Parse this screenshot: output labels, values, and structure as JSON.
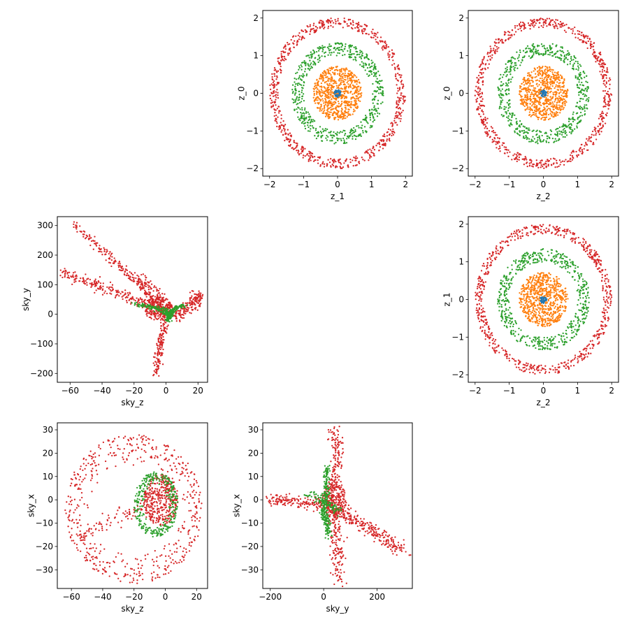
{
  "colors": {
    "blue": "#1f77b4",
    "orange": "#ff7f0e",
    "green": "#2ca02c",
    "red": "#d62728"
  },
  "chart_data": [
    {
      "type": "scatter",
      "panel": "row1-col2",
      "xlabel": "z_1",
      "ylabel": "z_0",
      "xlim": [
        -2.2,
        2.2
      ],
      "ylim": [
        -2.2,
        2.2
      ],
      "xticks": [
        -2,
        -1,
        0,
        1,
        2
      ],
      "yticks": [
        -2,
        -1,
        0,
        1,
        2
      ],
      "grid": false,
      "series": [
        {
          "color": "red",
          "kind": "ring",
          "r": [
            1.75,
            2.0
          ],
          "count": 700
        },
        {
          "color": "green",
          "kind": "ring",
          "r": [
            1.0,
            1.35
          ],
          "count": 600
        },
        {
          "color": "orange",
          "kind": "ring",
          "r": [
            0.0,
            0.72
          ],
          "count": 700
        },
        {
          "color": "blue",
          "kind": "ring",
          "r": [
            0.0,
            0.1
          ],
          "count": 40
        }
      ]
    },
    {
      "type": "scatter",
      "panel": "row1-col3",
      "xlabel": "z_2",
      "ylabel": "z_0",
      "xlim": [
        -2.2,
        2.2
      ],
      "ylim": [
        -2.2,
        2.2
      ],
      "xticks": [
        -2,
        -1,
        0,
        1,
        2
      ],
      "yticks": [
        -2,
        -1,
        0,
        1,
        2
      ],
      "grid": false,
      "series": [
        {
          "color": "red",
          "kind": "ring",
          "r": [
            1.75,
            2.0
          ],
          "count": 700
        },
        {
          "color": "green",
          "kind": "ring",
          "r": [
            1.0,
            1.35
          ],
          "count": 600
        },
        {
          "color": "orange",
          "kind": "ring",
          "r": [
            0.0,
            0.72
          ],
          "count": 700
        },
        {
          "color": "blue",
          "kind": "ring",
          "r": [
            0.0,
            0.1
          ],
          "count": 40
        }
      ]
    },
    {
      "type": "scatter",
      "panel": "row2-col1",
      "xlabel": "sky_z",
      "ylabel": "sky_y",
      "xlim": [
        -68,
        26
      ],
      "ylim": [
        -230,
        330
      ],
      "xticks": [
        -60,
        -40,
        -20,
        0,
        20
      ],
      "yticks": [
        -200,
        -100,
        0,
        100,
        200,
        300
      ],
      "grid": false,
      "series": [
        {
          "color": "red",
          "kind": "path",
          "spread": [
            1.2,
            8
          ],
          "points": [
            [
              -58,
              300
            ],
            [
              -45,
              240
            ],
            [
              -30,
              170
            ],
            [
              -15,
              90
            ],
            [
              -5,
              30
            ],
            [
              0,
              5
            ],
            [
              -2,
              -50
            ],
            [
              -4,
              -120
            ],
            [
              -6,
              -200
            ]
          ],
          "count": 380
        },
        {
          "color": "red",
          "kind": "path",
          "spread": [
            1.5,
            10
          ],
          "points": [
            [
              -65,
              145
            ],
            [
              -50,
              110
            ],
            [
              -35,
              80
            ],
            [
              -20,
              50
            ],
            [
              -8,
              25
            ],
            [
              5,
              10
            ],
            [
              15,
              30
            ],
            [
              22,
              60
            ]
          ],
          "count": 320
        },
        {
          "color": "red",
          "kind": "path",
          "spread": [
            2.5,
            10
          ],
          "points": [
            [
              -20,
              130
            ],
            [
              -10,
              90
            ],
            [
              -5,
              60
            ],
            [
              -3,
              20
            ],
            [
              3,
              0
            ],
            [
              8,
              -10
            ],
            [
              15,
              30
            ],
            [
              20,
              75
            ]
          ],
          "count": 220
        },
        {
          "color": "red",
          "kind": "blob",
          "center": [
            -5,
            20
          ],
          "radius": [
            9,
            40
          ],
          "count": 180
        },
        {
          "color": "green",
          "kind": "path",
          "spread": [
            1,
            4
          ],
          "points": [
            [
              -20,
              35
            ],
            [
              -12,
              28
            ],
            [
              -5,
              18
            ],
            [
              0,
              10
            ],
            [
              2,
              0
            ],
            [
              1,
              -15
            ],
            [
              5,
              20
            ],
            [
              12,
              30
            ]
          ],
          "count": 320
        }
      ]
    },
    {
      "type": "scatter",
      "panel": "row2-col3",
      "xlabel": "z_2",
      "ylabel": "z_1",
      "xlim": [
        -2.2,
        2.2
      ],
      "ylim": [
        -2.2,
        2.2
      ],
      "xticks": [
        -2,
        -1,
        0,
        1,
        2
      ],
      "yticks": [
        -2,
        -1,
        0,
        1,
        2
      ],
      "grid": false,
      "series": [
        {
          "color": "red",
          "kind": "ring",
          "r": [
            1.75,
            2.0
          ],
          "count": 700
        },
        {
          "color": "green",
          "kind": "ring",
          "r": [
            1.0,
            1.35
          ],
          "count": 600
        },
        {
          "color": "orange",
          "kind": "ring",
          "r": [
            0.0,
            0.72
          ],
          "count": 700
        },
        {
          "color": "blue",
          "kind": "ring",
          "r": [
            0.0,
            0.1
          ],
          "count": 40
        }
      ]
    },
    {
      "type": "scatter",
      "panel": "row3-col1",
      "xlabel": "sky_z",
      "ylabel": "sky_x",
      "xlim": [
        -69,
        27
      ],
      "ylim": [
        -38,
        33
      ],
      "xticks": [
        -60,
        -40,
        -20,
        0,
        20
      ],
      "yticks": [
        -30,
        -20,
        -10,
        0,
        10,
        20,
        30
      ],
      "grid": false,
      "series": [
        {
          "color": "red",
          "kind": "ring",
          "center": [
            -20,
            -4
          ],
          "rx": [
            28,
            44
          ],
          "ry": [
            18,
            32
          ],
          "count": 520
        },
        {
          "color": "red",
          "kind": "blob",
          "center": [
            -3,
            0
          ],
          "radius": [
            11,
            11
          ],
          "count": 380
        },
        {
          "color": "red",
          "kind": "path",
          "spread": [
            1.5,
            1.5
          ],
          "points": [
            [
              -55,
              -15
            ],
            [
              -40,
              -10
            ],
            [
              -25,
              -6
            ],
            [
              -12,
              -3
            ]
          ],
          "count": 90
        },
        {
          "color": "green",
          "kind": "ring",
          "center": [
            -6,
            -2
          ],
          "rx": [
            7,
            14
          ],
          "ry": [
            9,
            14
          ],
          "count": 320
        }
      ]
    },
    {
      "type": "scatter",
      "panel": "row3-col2",
      "xlabel": "sky_y",
      "ylabel": "sky_x",
      "xlim": [
        -228,
        332
      ],
      "ylim": [
        -38,
        33
      ],
      "xticks": [
        -200,
        0,
        200
      ],
      "yticks": [
        -30,
        -20,
        -10,
        0,
        10,
        20,
        30
      ],
      "grid": false,
      "series": [
        {
          "color": "red",
          "kind": "path",
          "spread": [
            12,
            1.2
          ],
          "points": [
            [
              -200,
              0
            ],
            [
              -140,
              0
            ],
            [
              -80,
              -1
            ],
            [
              -20,
              -2
            ],
            [
              20,
              -3
            ]
          ],
          "count": 170
        },
        {
          "color": "red",
          "kind": "path",
          "spread": [
            14,
            1.5
          ],
          "points": [
            [
              20,
              0
            ],
            [
              80,
              -6
            ],
            [
              140,
              -10
            ],
            [
              200,
              -14
            ],
            [
              260,
              -20
            ],
            [
              300,
              -21
            ]
          ],
          "count": 280
        },
        {
          "color": "red",
          "kind": "path",
          "spread": [
            14,
            2
          ],
          "points": [
            [
              40,
              29
            ],
            [
              55,
              20
            ],
            [
              45,
              10
            ],
            [
              35,
              0
            ],
            [
              40,
              -10
            ],
            [
              50,
              -20
            ],
            [
              60,
              -28
            ],
            [
              55,
              -34
            ]
          ],
          "count": 320
        },
        {
          "color": "red",
          "kind": "blob",
          "center": [
            40,
            0
          ],
          "radius": [
            45,
            8
          ],
          "count": 200
        },
        {
          "color": "green",
          "kind": "path",
          "spread": [
            6,
            1
          ],
          "points": [
            [
              15,
              14
            ],
            [
              10,
              6
            ],
            [
              5,
              0
            ],
            [
              0,
              -5
            ],
            [
              12,
              -10
            ],
            [
              20,
              -15
            ]
          ],
          "count": 260
        },
        {
          "color": "green",
          "kind": "path",
          "spread": [
            8,
            1
          ],
          "points": [
            [
              -60,
              3
            ],
            [
              -20,
              1
            ],
            [
              20,
              -2
            ],
            [
              60,
              -5
            ]
          ],
          "count": 90
        }
      ]
    }
  ]
}
